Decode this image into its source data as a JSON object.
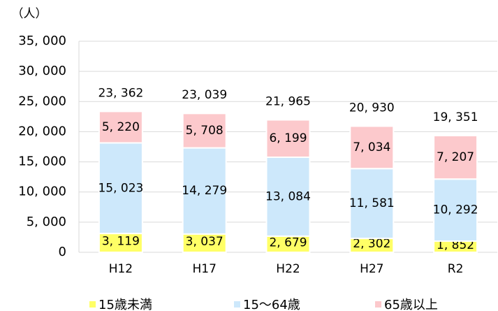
{
  "chart_data": {
    "type": "stacked_bar",
    "y_axis_label": "（人）",
    "categories": [
      "H12",
      "H17",
      "H22",
      "H27",
      "R2"
    ],
    "series": [
      {
        "name": "15歳未満",
        "color": "#ffff66",
        "values": [
          3119,
          3037,
          2679,
          2302,
          1852
        ],
        "value_labels": [
          "3, 119",
          "3, 037",
          "2, 679",
          "2, 302",
          "1, 852"
        ]
      },
      {
        "name": "15～64歳",
        "color": "#cde8fb",
        "values": [
          15023,
          14279,
          13084,
          11581,
          10292
        ],
        "value_labels": [
          "15, 023",
          "14, 279",
          "13, 084",
          "11, 581",
          "10, 292"
        ]
      },
      {
        "name": "65歳以上",
        "color": "#fcc9cc",
        "values": [
          5220,
          5708,
          6199,
          7034,
          7207
        ],
        "value_labels": [
          "5, 220",
          "5, 708",
          "6, 199",
          "7, 034",
          "7, 207"
        ]
      }
    ],
    "totals": [
      23362,
      23039,
      21965,
      20930,
      19351
    ],
    "total_labels": [
      "23, 362",
      "23, 039",
      "21, 965",
      "20, 930",
      "19, 351"
    ],
    "ylim": [
      0,
      35000
    ],
    "yticks": [
      0,
      {
        "value": 5000,
        "label": "5, 000"
      },
      {
        "value": 10000,
        "label": "10, 000"
      },
      {
        "value": 15000,
        "label": "15, 000"
      },
      {
        "value": 20000,
        "label": "20, 000"
      },
      {
        "value": 25000,
        "label": "25, 000"
      },
      {
        "value": 30000,
        "label": "30, 000"
      },
      {
        "value": 35000,
        "label": "35, 000"
      }
    ],
    "grid": true,
    "legend": "bottom"
  }
}
